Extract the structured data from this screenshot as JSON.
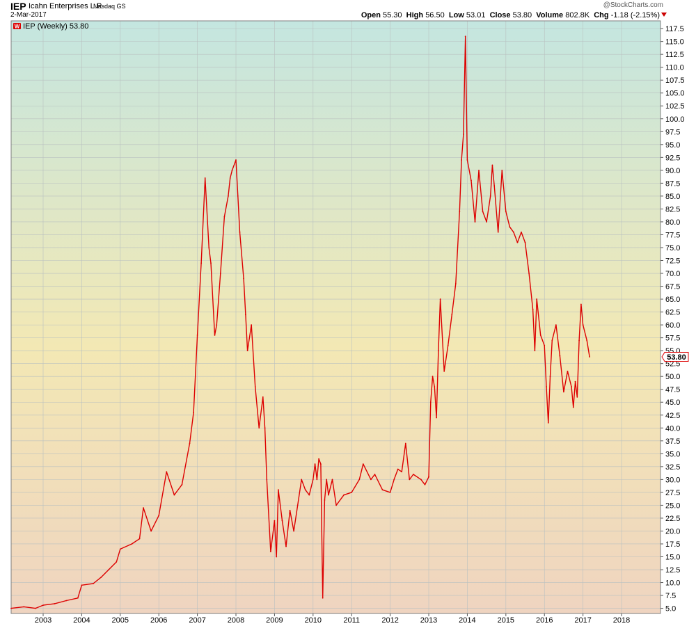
{
  "header": {
    "symbol": "IEP",
    "company": "Icahn Enterprises L.P.",
    "exchange": "Nasdaq GS",
    "date": "2-Mar-2017",
    "copyright": "@StockCharts.com",
    "open_label": "Open",
    "open": "55.30",
    "high_label": "High",
    "high": "56.50",
    "low_label": "Low",
    "low": "53.01",
    "close_label": "Close",
    "close": "53.80",
    "volume_label": "Volume",
    "volume": "802.8K",
    "chg_label": "Chg",
    "chg": "-1.18 (-2.15%)"
  },
  "colors": {
    "line": "#dd0000",
    "bg_top": "#c4e6e0",
    "bg_mid": "#f3e8b4",
    "bg_bottom": "#efd4c0",
    "grid": "#b9c0c0"
  },
  "chart_data": {
    "type": "line",
    "legend": "IEP (Weekly) 53.80",
    "legend_icon": "W",
    "last_value_label": "53.80",
    "y_axis_side": "right",
    "grid": true,
    "ylim": [
      4,
      119
    ],
    "xlim": [
      2002.17,
      2019.01
    ],
    "y_ticks": [
      5.0,
      7.5,
      10.0,
      12.5,
      15.0,
      17.5,
      20.0,
      22.5,
      25.0,
      27.5,
      30.0,
      32.5,
      35.0,
      37.5,
      40.0,
      42.5,
      45.0,
      47.5,
      50.0,
      52.5,
      55.0,
      57.5,
      60.0,
      62.5,
      65.0,
      67.5,
      70.0,
      72.5,
      75.0,
      77.5,
      80.0,
      82.5,
      85.0,
      87.5,
      90.0,
      92.5,
      95.0,
      97.5,
      100.0,
      102.5,
      105.0,
      107.5,
      110.0,
      112.5,
      115.0,
      117.5
    ],
    "x_ticks": [
      "2003",
      "2004",
      "2005",
      "2006",
      "2007",
      "2008",
      "2009",
      "2010",
      "2011",
      "2012",
      "2013",
      "2014",
      "2015",
      "2016",
      "2017",
      "2018"
    ],
    "series": [
      {
        "name": "IEP",
        "x": [
          2002.17,
          2002.5,
          2002.8,
          2003.0,
          2003.3,
          2003.6,
          2003.9,
          2004.0,
          2004.3,
          2004.5,
          2004.7,
          2004.9,
          2005.0,
          2005.3,
          2005.5,
          2005.6,
          2005.8,
          2006.0,
          2006.2,
          2006.4,
          2006.6,
          2006.8,
          2006.9,
          2007.0,
          2007.1,
          2007.2,
          2007.3,
          2007.35,
          2007.45,
          2007.5,
          2007.6,
          2007.7,
          2007.8,
          2007.85,
          2007.9,
          2008.0,
          2008.05,
          2008.1,
          2008.2,
          2008.25,
          2008.3,
          2008.4,
          2008.5,
          2008.6,
          2008.7,
          2008.75,
          2008.8,
          2008.9,
          2009.0,
          2009.05,
          2009.1,
          2009.2,
          2009.3,
          2009.4,
          2009.5,
          2009.6,
          2009.7,
          2009.8,
          2009.9,
          2010.0,
          2010.05,
          2010.1,
          2010.15,
          2010.2,
          2010.25,
          2010.3,
          2010.35,
          2010.4,
          2010.5,
          2010.6,
          2010.8,
          2011.0,
          2011.2,
          2011.3,
          2011.5,
          2011.6,
          2011.8,
          2012.0,
          2012.1,
          2012.2,
          2012.3,
          2012.4,
          2012.5,
          2012.6,
          2012.8,
          2012.9,
          2013.0,
          2013.05,
          2013.1,
          2013.15,
          2013.2,
          2013.25,
          2013.3,
          2013.4,
          2013.5,
          2013.6,
          2013.7,
          2013.8,
          2013.85,
          2013.9,
          2013.95,
          2014.0,
          2014.1,
          2014.2,
          2014.3,
          2014.4,
          2014.5,
          2014.6,
          2014.65,
          2014.7,
          2014.8,
          2014.9,
          2015.0,
          2015.1,
          2015.2,
          2015.3,
          2015.4,
          2015.5,
          2015.6,
          2015.7,
          2015.75,
          2015.8,
          2015.9,
          2016.0,
          2016.05,
          2016.1,
          2016.15,
          2016.2,
          2016.3,
          2016.4,
          2016.5,
          2016.6,
          2016.7,
          2016.75,
          2016.8,
          2016.85,
          2016.9,
          2016.95,
          2017.0,
          2017.1,
          2017.17
        ],
        "values": [
          5.0,
          5.3,
          5.0,
          5.6,
          5.9,
          6.5,
          7.0,
          9.5,
          9.8,
          11.0,
          12.5,
          14.0,
          16.5,
          17.5,
          18.5,
          24.5,
          20.0,
          23.0,
          31.5,
          27.0,
          29.0,
          37.0,
          43.0,
          58.0,
          72.0,
          88.5,
          75.0,
          72.0,
          58.0,
          60.0,
          70.0,
          81.0,
          85.0,
          88.5,
          90.0,
          92.0,
          85.0,
          78.0,
          69.0,
          62.0,
          55.0,
          60.0,
          48.0,
          40.0,
          46.0,
          40.0,
          30.0,
          16.0,
          22.0,
          15.0,
          28.0,
          22.0,
          17.0,
          24.0,
          20.0,
          25.0,
          30.0,
          28.0,
          27.0,
          30.0,
          33.0,
          30.0,
          34.0,
          33.0,
          7.0,
          26.0,
          30.0,
          27.0,
          30.0,
          25.0,
          27.0,
          27.5,
          30.0,
          33.0,
          30.0,
          31.0,
          28.0,
          27.5,
          30.0,
          32.0,
          31.5,
          37.0,
          30.0,
          31.0,
          30.0,
          29.0,
          30.5,
          45.0,
          50.0,
          48.0,
          42.0,
          55.0,
          65.0,
          51.0,
          56.0,
          62.0,
          68.0,
          82.0,
          92.0,
          97.0,
          116.0,
          92.0,
          88.0,
          80.0,
          90.0,
          82.0,
          80.0,
          85.0,
          91.0,
          87.0,
          78.0,
          90.0,
          82.0,
          79.0,
          78.0,
          76.0,
          78.0,
          76.0,
          70.0,
          63.0,
          55.0,
          65.0,
          58.0,
          56.0,
          48.0,
          41.0,
          50.0,
          57.0,
          60.0,
          54.0,
          47.0,
          51.0,
          48.0,
          44.0,
          49.0,
          46.0,
          57.0,
          64.0,
          60.0,
          57.0,
          53.8
        ]
      }
    ]
  }
}
